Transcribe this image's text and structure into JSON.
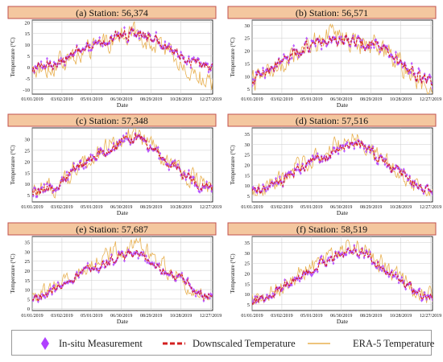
{
  "colors": {
    "title_bg": "#f4c79f",
    "title_border": "#c0504d",
    "insitu": "#b040ff",
    "downscaled": "#d32020",
    "era5": "#e8b050",
    "grid": "#cccccc",
    "axis": "#000000"
  },
  "legend": {
    "insitu": "In-situ Measurement",
    "downscaled": "Downscaled Temperature",
    "era5": "ERA-5 Temperature"
  },
  "chart_data": [
    {
      "type": "line",
      "title": "(a) Station: 56,374",
      "xlabel": "Date",
      "ylabel": "Temperature (°C)",
      "xticks": [
        "01/01/2019",
        "03/02/2019",
        "05/01/2019",
        "06/30/2019",
        "08/29/2019",
        "10/28/2019",
        "12/27/2019"
      ],
      "yticks": [
        -10,
        -5,
        0,
        5,
        10,
        15,
        20
      ],
      "ylim": [
        -12,
        21
      ],
      "x": [
        "2019-01-01",
        "2019-02-01",
        "2019-03-01",
        "2019-04-01",
        "2019-05-01",
        "2019-06-01",
        "2019-07-01",
        "2019-08-01",
        "2019-09-01",
        "2019-10-01",
        "2019-11-01",
        "2019-12-01",
        "2019-12-31"
      ],
      "series": [
        {
          "name": "In-situ Measurement",
          "values": [
            -1,
            1,
            3,
            6,
            9,
            12,
            15,
            16,
            13,
            9,
            5,
            1,
            0
          ]
        },
        {
          "name": "Downscaled Temperature",
          "values": [
            -1,
            1,
            3,
            6,
            9,
            12,
            15,
            16,
            13,
            9,
            5,
            1,
            0
          ]
        },
        {
          "name": "ERA-5 Temperature",
          "values": [
            -1,
            0,
            2,
            5,
            8,
            11,
            14,
            15,
            11,
            6,
            1,
            -4,
            -8
          ]
        }
      ]
    },
    {
      "type": "line",
      "title": "(b) Station: 56,571",
      "xlabel": "Date",
      "ylabel": "Temperature (°C)",
      "xticks": [
        "01/01/2019",
        "03/02/2019",
        "05/01/2019",
        "06/30/2019",
        "08/29/2019",
        "10/28/2019",
        "12/27/2019"
      ],
      "yticks": [
        5,
        10,
        15,
        20,
        25,
        30
      ],
      "ylim": [
        3,
        32
      ],
      "x": [
        "2019-01-01",
        "2019-02-01",
        "2019-03-01",
        "2019-04-01",
        "2019-05-01",
        "2019-06-01",
        "2019-07-01",
        "2019-08-01",
        "2019-09-01",
        "2019-10-01",
        "2019-11-01",
        "2019-12-01",
        "2019-12-31"
      ],
      "series": [
        {
          "name": "In-situ Measurement",
          "values": [
            9,
            12,
            15,
            19,
            22,
            24,
            24,
            23,
            22,
            19,
            15,
            10,
            8
          ]
        },
        {
          "name": "Downscaled Temperature",
          "values": [
            9,
            12,
            15,
            19,
            22,
            24,
            24,
            23,
            22,
            19,
            15,
            10,
            8
          ]
        },
        {
          "name": "ERA-5 Temperature",
          "values": [
            8,
            11,
            14,
            19,
            23,
            25,
            25,
            23,
            22,
            19,
            14,
            9,
            7
          ]
        }
      ]
    },
    {
      "type": "line",
      "title": "(c) Station: 57,348",
      "xlabel": "Date",
      "ylabel": "Temperature (°C)",
      "xticks": [
        "01/01/2019",
        "03/02/2019",
        "05/01/2019",
        "06/30/2019",
        "08/29/2019",
        "10/28/2019",
        "12/27/2019"
      ],
      "yticks": [
        5,
        10,
        15,
        20,
        25,
        30
      ],
      "ylim": [
        2,
        35
      ],
      "x": [
        "2019-01-01",
        "2019-02-01",
        "2019-03-01",
        "2019-04-01",
        "2019-05-01",
        "2019-06-01",
        "2019-07-01",
        "2019-08-01",
        "2019-09-01",
        "2019-10-01",
        "2019-11-01",
        "2019-12-01",
        "2019-12-31"
      ],
      "series": [
        {
          "name": "In-situ Measurement",
          "values": [
            6,
            7,
            11,
            17,
            21,
            25,
            29,
            31,
            25,
            20,
            15,
            10,
            8
          ]
        },
        {
          "name": "Downscaled Temperature",
          "values": [
            6,
            7,
            11,
            17,
            21,
            25,
            29,
            31,
            25,
            20,
            15,
            10,
            8
          ]
        },
        {
          "name": "ERA-5 Temperature",
          "values": [
            6,
            7,
            12,
            18,
            22,
            26,
            30,
            32,
            26,
            20,
            15,
            10,
            8
          ]
        }
      ]
    },
    {
      "type": "line",
      "title": "(d) Station: 57,516",
      "xlabel": "Date",
      "ylabel": "Temperature (°C)",
      "xticks": [
        "01/01/2019",
        "03/02/2019",
        "05/01/2019",
        "06/30/2019",
        "08/29/2019",
        "10/28/2019",
        "12/27/2019"
      ],
      "yticks": [
        5,
        10,
        15,
        20,
        25,
        30,
        35
      ],
      "ylim": [
        2,
        38
      ],
      "x": [
        "2019-01-01",
        "2019-02-01",
        "2019-03-01",
        "2019-04-01",
        "2019-05-01",
        "2019-06-01",
        "2019-07-01",
        "2019-08-01",
        "2019-09-01",
        "2019-10-01",
        "2019-11-01",
        "2019-12-01",
        "2019-12-31"
      ],
      "series": [
        {
          "name": "In-situ Measurement",
          "values": [
            7,
            8,
            12,
            17,
            21,
            24,
            28,
            31,
            25,
            20,
            15,
            10,
            8
          ]
        },
        {
          "name": "Downscaled Temperature",
          "values": [
            7,
            8,
            12,
            17,
            21,
            24,
            28,
            31,
            25,
            20,
            15,
            10,
            8
          ]
        },
        {
          "name": "ERA-5 Temperature",
          "values": [
            7,
            9,
            13,
            19,
            23,
            27,
            31,
            33,
            27,
            21,
            15,
            10,
            8
          ]
        }
      ]
    },
    {
      "type": "line",
      "title": "(e) Station: 57,687",
      "xlabel": "Date",
      "ylabel": "Temperature (°C)",
      "xticks": [
        "01/01/2019",
        "03/02/2019",
        "05/01/2019",
        "06/30/2019",
        "08/29/2019",
        "10/28/2019",
        "12/27/2019"
      ],
      "yticks": [
        0,
        5,
        10,
        15,
        20,
        25,
        30,
        35
      ],
      "ylim": [
        -1,
        38
      ],
      "x": [
        "2019-01-01",
        "2019-02-01",
        "2019-03-01",
        "2019-04-01",
        "2019-05-01",
        "2019-06-01",
        "2019-07-01",
        "2019-08-01",
        "2019-09-01",
        "2019-10-01",
        "2019-11-01",
        "2019-12-01",
        "2019-12-31"
      ],
      "series": [
        {
          "name": "In-situ Measurement",
          "values": [
            5,
            8,
            12,
            17,
            21,
            25,
            28,
            29,
            25,
            19,
            15,
            9,
            6
          ]
        },
        {
          "name": "Downscaled Temperature",
          "values": [
            5,
            8,
            12,
            17,
            21,
            25,
            28,
            29,
            25,
            19,
            15,
            9,
            6
          ]
        },
        {
          "name": "ERA-5 Temperature",
          "values": [
            5,
            9,
            13,
            19,
            24,
            28,
            32,
            35,
            29,
            21,
            15,
            9,
            6
          ]
        }
      ]
    },
    {
      "type": "line",
      "title": "(f) Station: 58,519",
      "xlabel": "Date",
      "ylabel": "Temperature (°C)",
      "xticks": [
        "01/01/2019",
        "03/02/2019",
        "05/01/2019",
        "06/30/2019",
        "08/29/2019",
        "10/28/2019",
        "12/27/2019"
      ],
      "yticks": [
        5,
        10,
        15,
        20,
        25,
        30,
        35
      ],
      "ylim": [
        2,
        38
      ],
      "x": [
        "2019-01-01",
        "2019-02-01",
        "2019-03-01",
        "2019-04-01",
        "2019-05-01",
        "2019-06-01",
        "2019-07-01",
        "2019-08-01",
        "2019-09-01",
        "2019-10-01",
        "2019-11-01",
        "2019-12-01",
        "2019-12-31"
      ],
      "series": [
        {
          "name": "In-situ Measurement",
          "values": [
            7,
            9,
            13,
            18,
            22,
            26,
            30,
            31,
            27,
            21,
            16,
            10,
            8
          ]
        },
        {
          "name": "Downscaled Temperature",
          "values": [
            7,
            9,
            13,
            18,
            22,
            26,
            30,
            31,
            27,
            21,
            16,
            10,
            8
          ]
        },
        {
          "name": "ERA-5 Temperature",
          "values": [
            7,
            9,
            14,
            19,
            24,
            28,
            32,
            34,
            29,
            22,
            16,
            11,
            9
          ]
        }
      ]
    }
  ]
}
